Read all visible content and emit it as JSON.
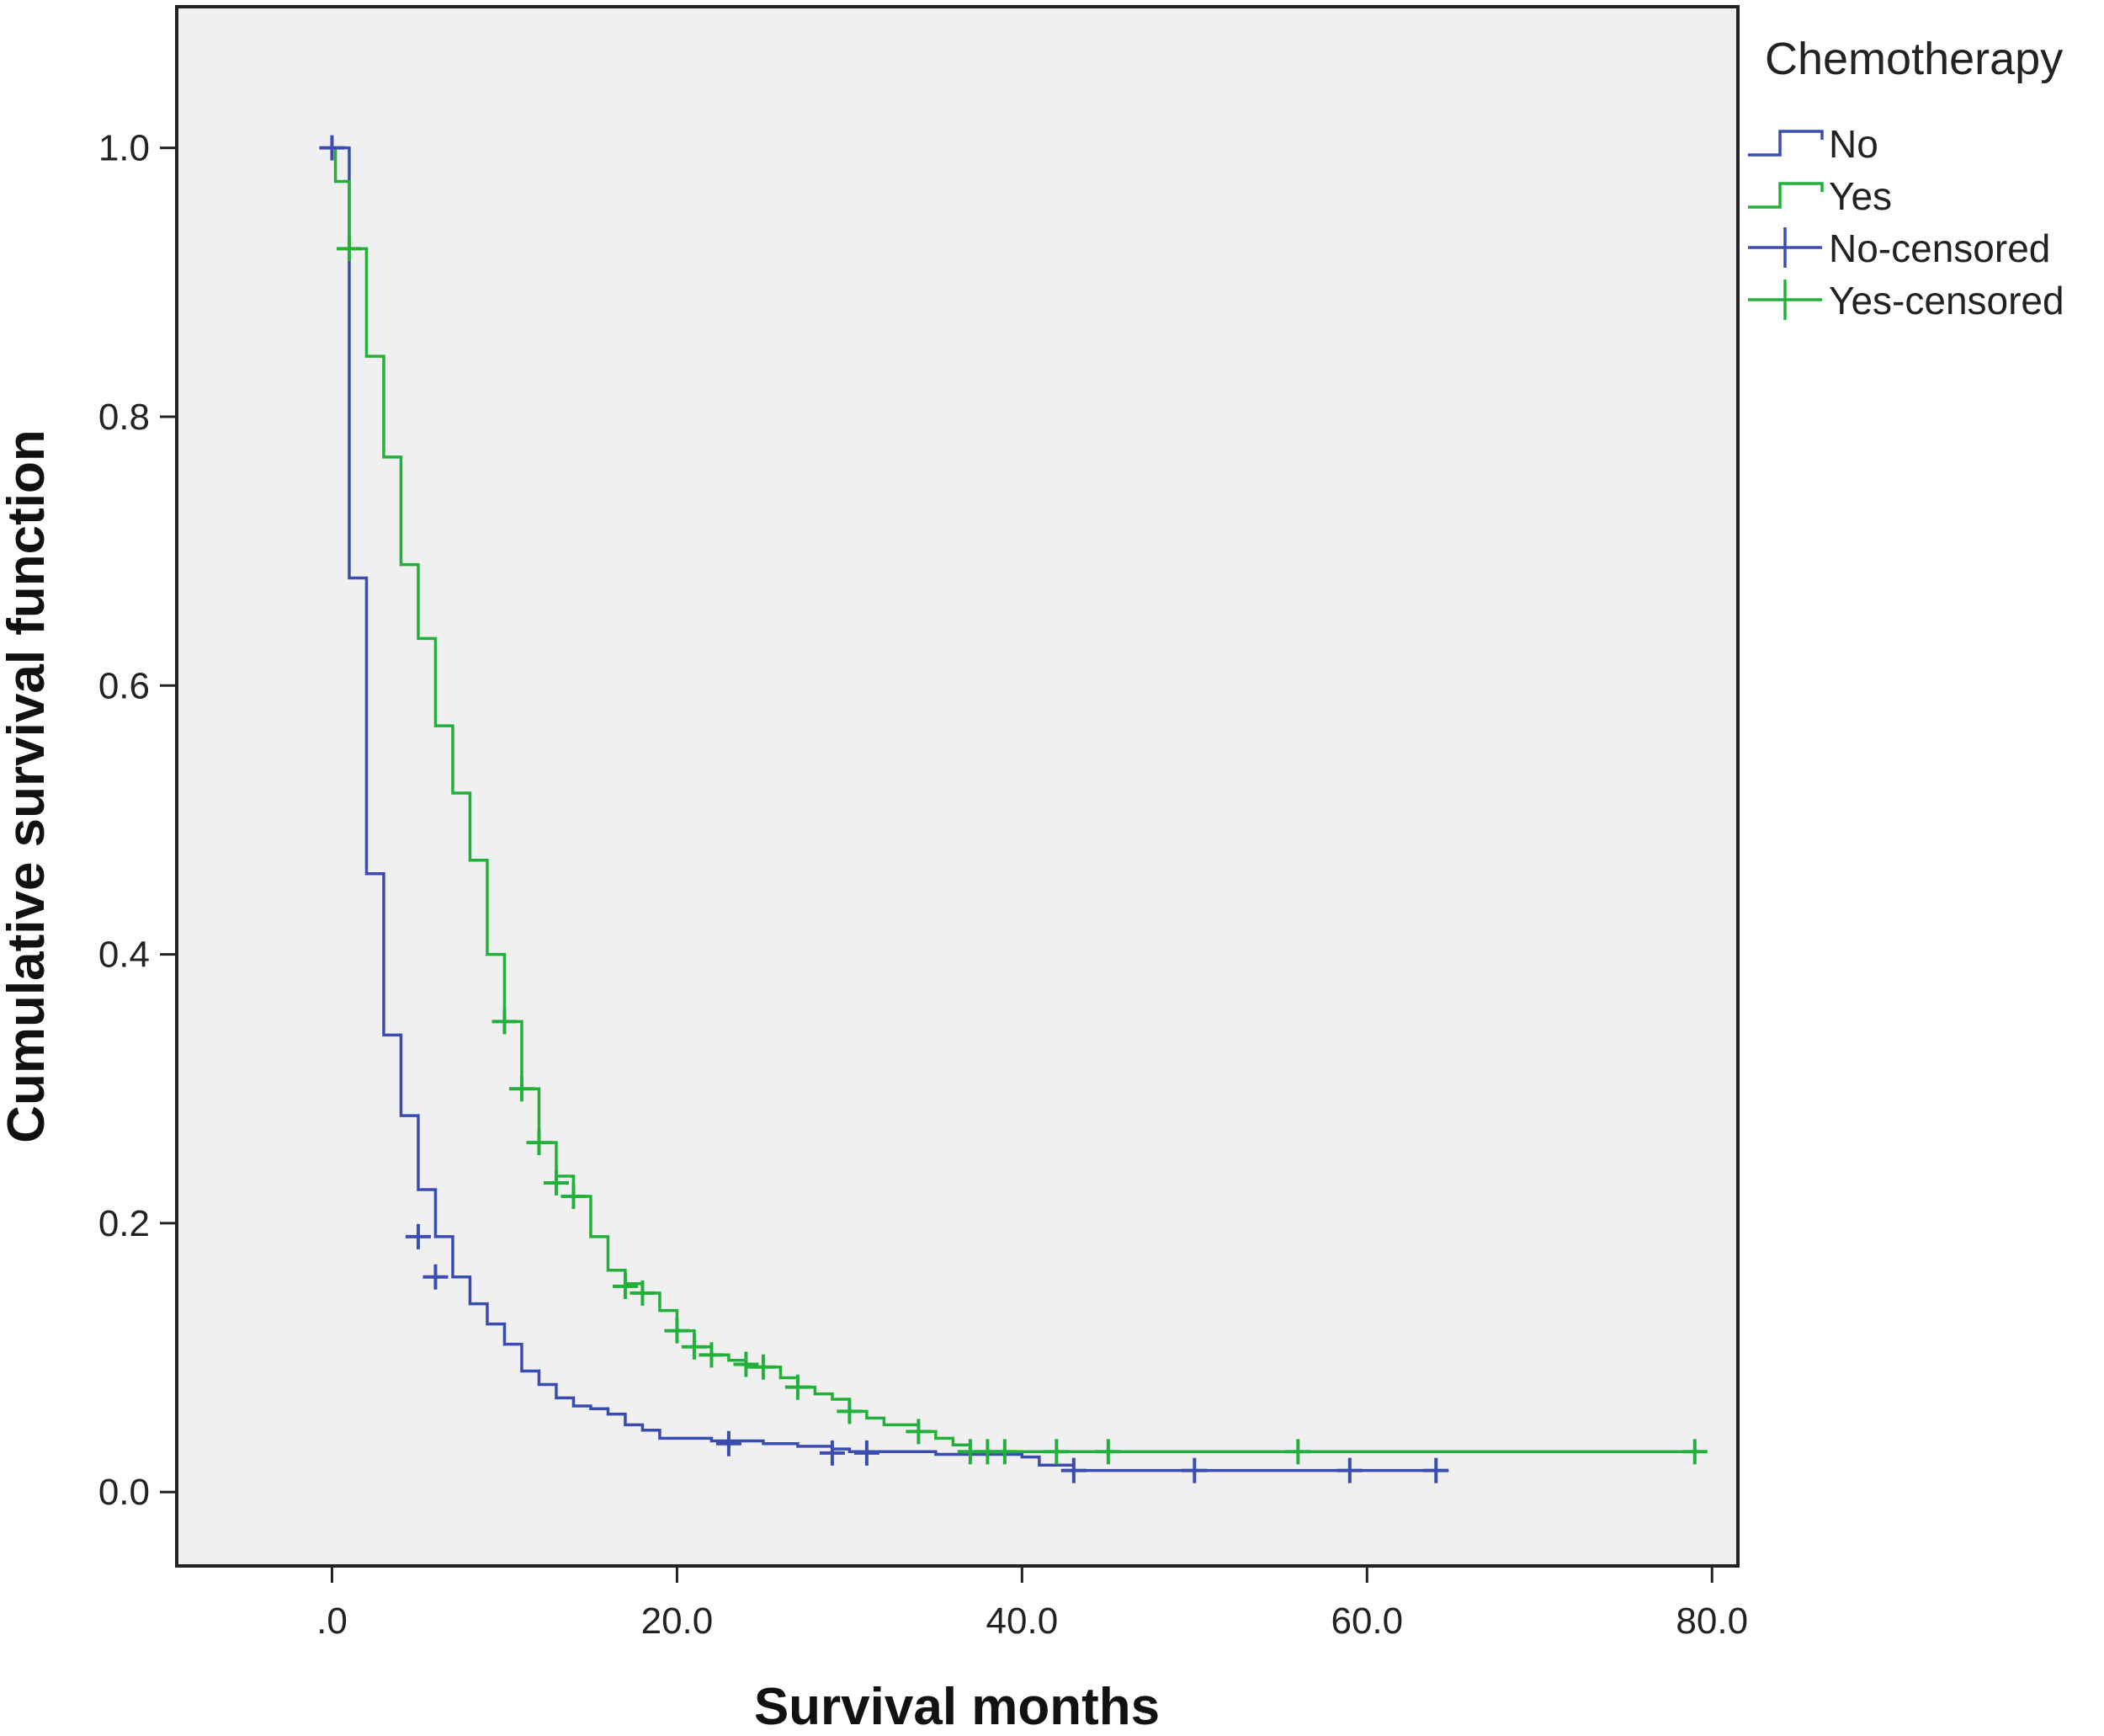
{
  "chart_data": {
    "type": "line",
    "subtype": "kaplan-meier-step",
    "title": "",
    "xlabel": "Survival months",
    "ylabel": "Cumulative survival function",
    "xlim": [
      -9,
      81.5
    ],
    "ylim": [
      -0.055,
      1.105
    ],
    "xticks": [
      0,
      20,
      40,
      60,
      80
    ],
    "xtick_labels": [
      ".0",
      "20.0",
      "40.0",
      "60.0",
      "80.0"
    ],
    "yticks": [
      0,
      0.2,
      0.4,
      0.6,
      0.8,
      1.0
    ],
    "ytick_labels": [
      "0.0",
      "0.2",
      "0.4",
      "0.6",
      "0.8",
      "1.0"
    ],
    "grid": false,
    "legend_title": "Chemotherapy",
    "legend_position": "top-right outside",
    "legend": [
      {
        "label": "No",
        "kind": "step",
        "series": 0
      },
      {
        "label": "Yes",
        "kind": "step",
        "series": 1
      },
      {
        "label": "No-censored",
        "kind": "censor",
        "series": 0
      },
      {
        "label": "Yes-censored",
        "kind": "censor",
        "series": 1
      }
    ],
    "series": [
      {
        "name": "No",
        "color": "#3b4cb0",
        "steps": [
          [
            0,
            1.0
          ],
          [
            1,
            0.68
          ],
          [
            2,
            0.46
          ],
          [
            3,
            0.34
          ],
          [
            4,
            0.28
          ],
          [
            5,
            0.225
          ],
          [
            6,
            0.19
          ],
          [
            7,
            0.16
          ],
          [
            8,
            0.14
          ],
          [
            9,
            0.125
          ],
          [
            10,
            0.11
          ],
          [
            11,
            0.09
          ],
          [
            12,
            0.08
          ],
          [
            13,
            0.07
          ],
          [
            14,
            0.064
          ],
          [
            15,
            0.062
          ],
          [
            16,
            0.058
          ],
          [
            17,
            0.05
          ],
          [
            18,
            0.046
          ],
          [
            19,
            0.04
          ],
          [
            22,
            0.038
          ],
          [
            25,
            0.036
          ],
          [
            27,
            0.034
          ],
          [
            29,
            0.032
          ],
          [
            30,
            0.03
          ],
          [
            35,
            0.028
          ],
          [
            40,
            0.026
          ],
          [
            41,
            0.02
          ],
          [
            43,
            0.016
          ],
          [
            64.5,
            0.016
          ]
        ],
        "censored": [
          [
            0,
            1.0
          ],
          [
            5,
            0.19
          ],
          [
            6,
            0.16
          ],
          [
            23,
            0.036
          ],
          [
            29,
            0.029
          ],
          [
            31,
            0.029
          ],
          [
            43,
            0.016
          ],
          [
            50,
            0.016
          ],
          [
            59,
            0.016
          ],
          [
            64,
            0.016
          ]
        ]
      },
      {
        "name": "Yes",
        "color": "#22b03a",
        "steps": [
          [
            0,
            1.0
          ],
          [
            0.2,
            0.975
          ],
          [
            1,
            0.925
          ],
          [
            2,
            0.845
          ],
          [
            3,
            0.77
          ],
          [
            4,
            0.69
          ],
          [
            5,
            0.635
          ],
          [
            6,
            0.57
          ],
          [
            7,
            0.52
          ],
          [
            8,
            0.47
          ],
          [
            9,
            0.4
          ],
          [
            10,
            0.35
          ],
          [
            11,
            0.3
          ],
          [
            12,
            0.26
          ],
          [
            13,
            0.235
          ],
          [
            14,
            0.22
          ],
          [
            15,
            0.19
          ],
          [
            16,
            0.165
          ],
          [
            17,
            0.155
          ],
          [
            18,
            0.148
          ],
          [
            19,
            0.135
          ],
          [
            20,
            0.12
          ],
          [
            21,
            0.108
          ],
          [
            22,
            0.102
          ],
          [
            23,
            0.098
          ],
          [
            24,
            0.093
          ],
          [
            26,
            0.085
          ],
          [
            27,
            0.078
          ],
          [
            28,
            0.073
          ],
          [
            29,
            0.069
          ],
          [
            30,
            0.06
          ],
          [
            31,
            0.055
          ],
          [
            32,
            0.05
          ],
          [
            34,
            0.045
          ],
          [
            35,
            0.04
          ],
          [
            36,
            0.035
          ],
          [
            37,
            0.03
          ],
          [
            79.5,
            0.03
          ]
        ],
        "censored": [
          [
            1,
            0.925
          ],
          [
            10,
            0.35
          ],
          [
            11,
            0.3
          ],
          [
            12,
            0.26
          ],
          [
            13,
            0.23
          ],
          [
            14,
            0.22
          ],
          [
            17,
            0.153
          ],
          [
            18,
            0.148
          ],
          [
            20,
            0.12
          ],
          [
            21,
            0.108
          ],
          [
            22,
            0.102
          ],
          [
            24,
            0.095
          ],
          [
            25,
            0.093
          ],
          [
            27,
            0.078
          ],
          [
            30,
            0.06
          ],
          [
            34,
            0.045
          ],
          [
            37,
            0.03
          ],
          [
            38,
            0.03
          ],
          [
            39,
            0.03
          ],
          [
            42,
            0.03
          ],
          [
            45,
            0.03
          ],
          [
            56,
            0.03
          ],
          [
            79,
            0.03
          ]
        ]
      }
    ]
  }
}
